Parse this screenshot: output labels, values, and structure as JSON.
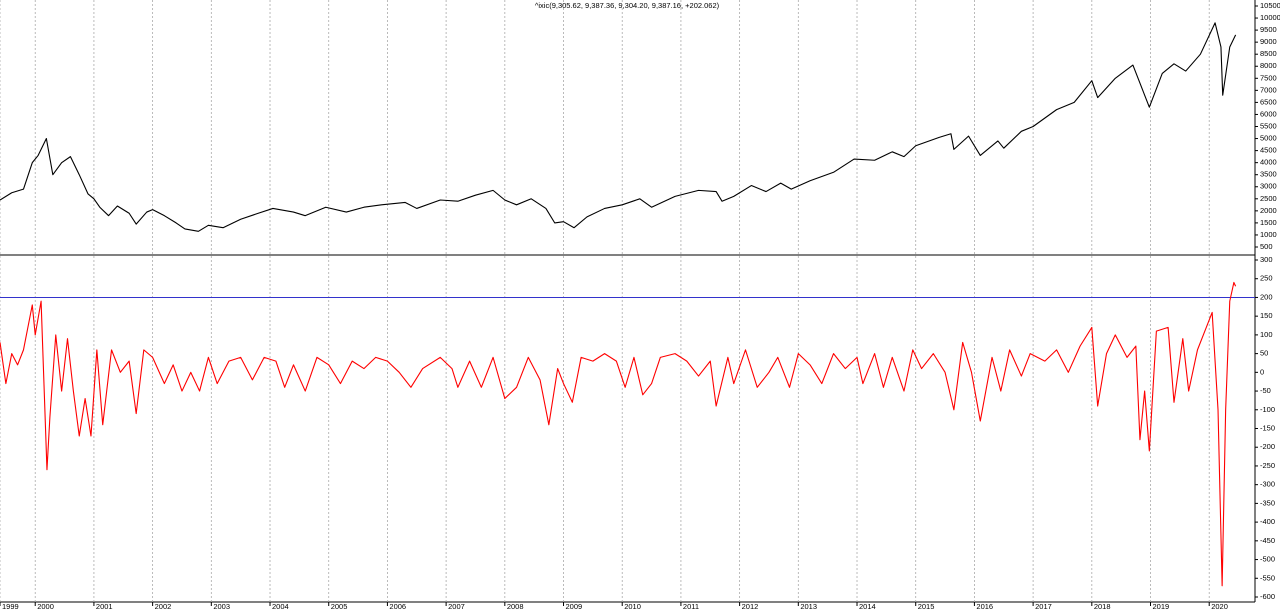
{
  "chart_data": [
    {
      "type": "line",
      "title": "^ixic(9,305.62, 9,387.36, 9,304.20, 9,387.16, +202.062)",
      "x": [
        1999.4,
        1999.6,
        1999.8,
        1999.95,
        2000.05,
        2000.19,
        2000.3,
        2000.45,
        2000.6,
        2000.75,
        2000.9,
        2001.0,
        2001.1,
        2001.25,
        2001.4,
        2001.6,
        2001.72,
        2001.9,
        2002.0,
        2002.2,
        2002.4,
        2002.55,
        2002.78,
        2002.95,
        2003.2,
        2003.5,
        2003.8,
        2004.05,
        2004.4,
        2004.6,
        2004.95,
        2005.3,
        2005.6,
        2005.9,
        2006.3,
        2006.5,
        2006.9,
        2007.2,
        2007.5,
        2007.8,
        2008.0,
        2008.2,
        2008.45,
        2008.7,
        2008.85,
        2009.0,
        2009.18,
        2009.4,
        2009.7,
        2010.0,
        2010.3,
        2010.5,
        2010.9,
        2011.3,
        2011.6,
        2011.7,
        2011.9,
        2012.2,
        2012.45,
        2012.7,
        2012.88,
        2013.2,
        2013.6,
        2013.95,
        2014.3,
        2014.6,
        2014.8,
        2015.0,
        2015.4,
        2015.6,
        2015.65,
        2015.9,
        2016.1,
        2016.4,
        2016.5,
        2016.8,
        2017.0,
        2017.4,
        2017.7,
        2018.0,
        2018.1,
        2018.4,
        2018.7,
        2018.98,
        2019.2,
        2019.4,
        2019.6,
        2019.85,
        2020.1,
        2020.2,
        2020.23,
        2020.35,
        2020.45
      ],
      "series": [
        {
          "color": "#000000",
          "values": [
            2450,
            2750,
            2900,
            4000,
            4300,
            5000,
            3500,
            4000,
            4250,
            3500,
            2700,
            2500,
            2150,
            1800,
            2200,
            1900,
            1450,
            1950,
            2050,
            1800,
            1500,
            1250,
            1150,
            1400,
            1300,
            1650,
            1900,
            2100,
            1950,
            1800,
            2150,
            1950,
            2150,
            2250,
            2350,
            2100,
            2450,
            2400,
            2650,
            2850,
            2450,
            2250,
            2500,
            2100,
            1500,
            1550,
            1300,
            1750,
            2100,
            2250,
            2500,
            2150,
            2600,
            2850,
            2800,
            2400,
            2600,
            3050,
            2800,
            3150,
            2900,
            3250,
            3600,
            4150,
            4100,
            4450,
            4250,
            4700,
            5050,
            5200,
            4550,
            5100,
            4300,
            4900,
            4600,
            5300,
            5500,
            6200,
            6500,
            7400,
            6700,
            7500,
            8050,
            6300,
            7700,
            8100,
            7800,
            8500,
            9800,
            8800,
            6800,
            8800,
            9300
          ]
        }
      ],
      "xlim": [
        1999.4,
        2020.78
      ],
      "ylim": [
        500,
        10500
      ],
      "yticks": [
        10500,
        10000,
        9500,
        9000,
        8500,
        8000,
        7500,
        7000,
        6500,
        6000,
        5500,
        5000,
        4500,
        4000,
        3500,
        3000,
        2500,
        2000,
        1500,
        1000,
        500
      ]
    },
    {
      "type": "line",
      "x": [
        1999.4,
        1999.5,
        1999.6,
        1999.7,
        1999.8,
        1999.95,
        2000.0,
        2000.1,
        2000.2,
        2000.25,
        2000.35,
        2000.45,
        2000.55,
        2000.65,
        2000.75,
        2000.85,
        2000.95,
        2001.05,
        2001.15,
        2001.3,
        2001.45,
        2001.6,
        2001.72,
        2001.85,
        2002.0,
        2002.2,
        2002.35,
        2002.5,
        2002.65,
        2002.8,
        2002.95,
        2003.1,
        2003.3,
        2003.5,
        2003.7,
        2003.9,
        2004.1,
        2004.25,
        2004.4,
        2004.6,
        2004.8,
        2005.0,
        2005.2,
        2005.4,
        2005.6,
        2005.8,
        2006.0,
        2006.2,
        2006.4,
        2006.6,
        2006.9,
        2007.1,
        2007.2,
        2007.4,
        2007.6,
        2007.8,
        2008.0,
        2008.2,
        2008.4,
        2008.6,
        2008.75,
        2008.9,
        2009.0,
        2009.15,
        2009.3,
        2009.5,
        2009.7,
        2009.9,
        2010.05,
        2010.2,
        2010.35,
        2010.5,
        2010.65,
        2010.9,
        2011.1,
        2011.3,
        2011.5,
        2011.6,
        2011.8,
        2011.9,
        2012.1,
        2012.3,
        2012.5,
        2012.65,
        2012.85,
        2013.0,
        2013.2,
        2013.4,
        2013.6,
        2013.8,
        2014.0,
        2014.1,
        2014.3,
        2014.45,
        2014.6,
        2014.8,
        2014.95,
        2015.1,
        2015.3,
        2015.5,
        2015.65,
        2015.8,
        2015.95,
        2016.1,
        2016.3,
        2016.45,
        2016.6,
        2016.8,
        2016.95,
        2017.2,
        2017.4,
        2017.6,
        2017.8,
        2018.0,
        2018.1,
        2018.25,
        2018.4,
        2018.6,
        2018.75,
        2018.82,
        2018.9,
        2018.98,
        2019.1,
        2019.3,
        2019.4,
        2019.55,
        2019.65,
        2019.8,
        2019.95,
        2020.05,
        2020.15,
        2020.22,
        2020.28,
        2020.35,
        2020.42,
        2020.45
      ],
      "series": [
        {
          "color": "#ff0000",
          "values": [
            80,
            -30,
            50,
            20,
            60,
            180,
            100,
            190,
            -260,
            -120,
            100,
            -50,
            90,
            -50,
            -170,
            -70,
            -170,
            60,
            -140,
            60,
            0,
            30,
            -110,
            60,
            40,
            -30,
            20,
            -50,
            0,
            -50,
            40,
            -30,
            30,
            40,
            -20,
            40,
            30,
            -40,
            20,
            -50,
            40,
            20,
            -30,
            30,
            10,
            40,
            30,
            0,
            -40,
            10,
            40,
            10,
            -40,
            30,
            -40,
            40,
            -70,
            -40,
            40,
            -20,
            -140,
            10,
            -30,
            -80,
            40,
            30,
            50,
            30,
            -40,
            40,
            -60,
            -30,
            40,
            50,
            30,
            -10,
            30,
            -90,
            40,
            -30,
            60,
            -40,
            0,
            40,
            -40,
            50,
            20,
            -30,
            50,
            10,
            40,
            -30,
            50,
            -40,
            40,
            -50,
            60,
            10,
            50,
            0,
            -100,
            80,
            0,
            -130,
            40,
            -50,
            60,
            -10,
            50,
            30,
            60,
            0,
            70,
            120,
            -90,
            50,
            100,
            40,
            70,
            -180,
            -50,
            -210,
            110,
            120,
            -80,
            90,
            -50,
            60,
            120,
            160,
            -100,
            -570,
            -100,
            190,
            240,
            230
          ]
        }
      ],
      "reference_line": {
        "value": 200,
        "color": "#3333cc"
      },
      "xlim": [
        1999.4,
        2020.78
      ],
      "ylim": [
        -600,
        300
      ],
      "yticks": [
        300,
        250,
        200,
        150,
        100,
        50,
        0,
        -50,
        -100,
        -150,
        -200,
        -250,
        -300,
        -350,
        -400,
        -450,
        -500,
        -550,
        -600
      ],
      "xticks": [
        {
          "value": 1999.4,
          "label": "1999"
        },
        2000,
        2001,
        2002,
        2003,
        2004,
        2005,
        2006,
        2007,
        2008,
        2009,
        2010,
        2011,
        2012,
        2013,
        2014,
        2015,
        2016,
        2017,
        2018,
        2019,
        2020
      ],
      "grid": "x"
    }
  ]
}
